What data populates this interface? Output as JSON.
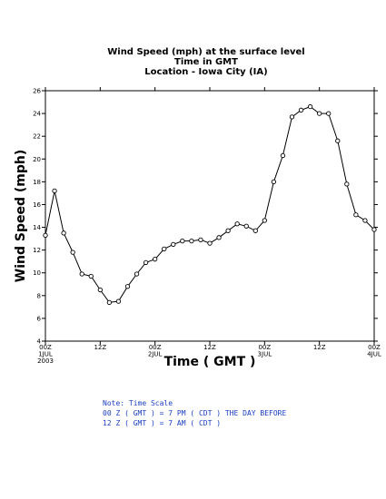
{
  "chart_data": {
    "type": "line",
    "title_lines": [
      "Wind Speed (mph) at the surface level",
      "Time in GMT",
      "Location - Iowa City (IA)"
    ],
    "xlabel": "Time ( GMT )",
    "ylabel": "Wind Speed (mph)",
    "ylim": [
      4,
      26
    ],
    "yticks": [
      4,
      6,
      8,
      10,
      12,
      14,
      16,
      18,
      20,
      22,
      24,
      26
    ],
    "xlim_hours": [
      0,
      72
    ],
    "xticks": [
      {
        "hour": 0,
        "lines": [
          "00Z",
          "1JUL",
          "2003"
        ]
      },
      {
        "hour": 12,
        "lines": [
          "12Z"
        ]
      },
      {
        "hour": 24,
        "lines": [
          "00Z",
          "2JUL"
        ]
      },
      {
        "hour": 36,
        "lines": [
          "12Z"
        ]
      },
      {
        "hour": 48,
        "lines": [
          "00Z",
          "3JUL"
        ]
      },
      {
        "hour": 60,
        "lines": [
          "12Z"
        ]
      },
      {
        "hour": 72,
        "lines": [
          "00Z",
          "4JUL"
        ]
      }
    ],
    "grid": false,
    "series": [
      {
        "x_hours": [
          0,
          2,
          4,
          6,
          8,
          10,
          12,
          14,
          16,
          18,
          20,
          22,
          24,
          26,
          28,
          30,
          32,
          34,
          36,
          38,
          40,
          42,
          44,
          46,
          48,
          50,
          52,
          54,
          56,
          58,
          60,
          62,
          64,
          66,
          68,
          70,
          72
        ],
        "values": [
          13.3,
          17.2,
          13.5,
          11.8,
          9.9,
          9.7,
          8.5,
          7.4,
          7.5,
          8.8,
          9.9,
          10.9,
          11.2,
          12.1,
          12.5,
          12.8,
          12.8,
          12.9,
          12.6,
          13.1,
          13.7,
          14.3,
          14.1,
          13.7,
          14.6,
          18.0,
          20.3,
          23.7,
          24.3,
          24.6,
          24.0,
          24.0,
          21.6,
          17.8,
          15.1,
          14.6,
          13.8
        ]
      }
    ]
  },
  "note": {
    "lines": [
      "Note: Time Scale",
      "00 Z ( GMT ) = 7 PM ( CDT ) THE DAY BEFORE",
      "12 Z ( GMT ) = 7 AM ( CDT )"
    ]
  }
}
